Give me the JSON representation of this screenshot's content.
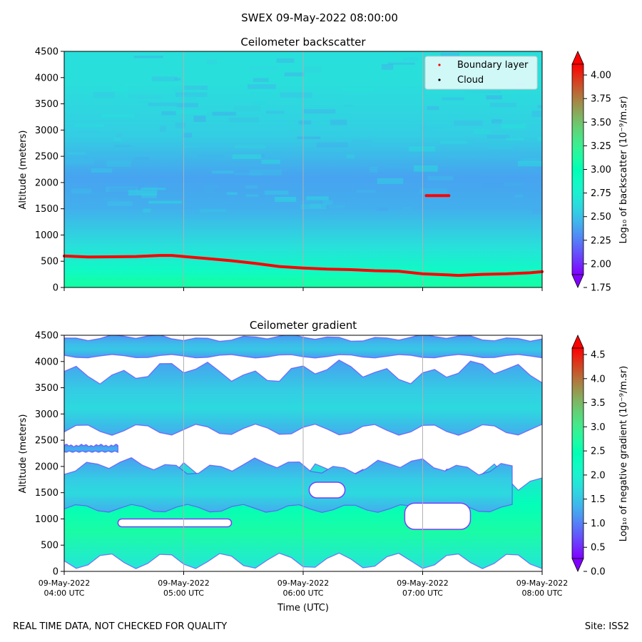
{
  "figure": {
    "suptitle": "SWEX 09-May-2022 08:00:00",
    "footer_left": "REAL TIME DATA, NOT CHECKED FOR QUALITY",
    "footer_right": "Site: ISS2"
  },
  "chart_data": [
    {
      "type": "heatmap",
      "title": "Ceilometer backscatter",
      "ylabel": "Altitude (meters)",
      "xlabel": "",
      "ylim": [
        0,
        4500
      ],
      "yticks": [
        0,
        500,
        1000,
        1500,
        2000,
        2500,
        3000,
        3500,
        4000,
        4500
      ],
      "xlim_hours": [
        4,
        8
      ],
      "xticks_hours": [
        4,
        5,
        6,
        7,
        8
      ],
      "grid": "vertical",
      "colorbar": {
        "label": "Log₁₀ of backscatter (10⁻⁹/m.sr)",
        "range": [
          1.75,
          4.25
        ],
        "ticks": [
          "1.75",
          "2.00",
          "2.25",
          "2.50",
          "2.75",
          "3.00",
          "3.25",
          "3.50",
          "3.75",
          "4.00"
        ],
        "tick_values": [
          1.75,
          2.0,
          2.25,
          2.5,
          2.75,
          3.0,
          3.25,
          3.5,
          3.75,
          4.0
        ],
        "extend": "both"
      },
      "legend": {
        "placement": "top-right",
        "entries": [
          {
            "label": "Boundary layer",
            "color": "#ff0000"
          },
          {
            "label": "Cloud",
            "color": "#000000"
          }
        ]
      },
      "boundary_layer": {
        "x_hours": [
          4.0,
          4.2,
          4.4,
          4.6,
          4.8,
          4.9,
          5.0,
          5.2,
          5.4,
          5.6,
          5.8,
          6.0,
          6.2,
          6.4,
          6.6,
          6.8,
          7.0,
          7.2,
          7.3,
          7.5,
          7.7,
          7.9,
          8.0
        ],
        "altitude_m": [
          600,
          580,
          585,
          590,
          610,
          610,
          590,
          550,
          510,
          460,
          400,
          370,
          350,
          340,
          320,
          310,
          260,
          240,
          230,
          250,
          260,
          280,
          300
        ]
      },
      "boundary_layer_segment": {
        "x_hours": [
          7.03,
          7.22
        ],
        "altitude_m": [
          1750,
          1750
        ]
      },
      "field_bands": [
        {
          "range_m": [
            0,
            220
          ],
          "value": 3.1
        },
        {
          "range_m": [
            220,
            400
          ],
          "value": 2.85
        },
        {
          "range_m": [
            400,
            1200
          ],
          "value": 2.6
        },
        {
          "range_m": [
            1200,
            1800
          ],
          "value": 2.35
        },
        {
          "range_m": [
            1800,
            2400
          ],
          "value": 2.3
        },
        {
          "range_m": [
            2400,
            3400
          ],
          "value": 2.5
        },
        {
          "range_m": [
            3400,
            4500
          ],
          "value": 2.6
        }
      ]
    },
    {
      "type": "heatmap",
      "title": "Ceilometer gradient",
      "ylabel": "Altitude (meters)",
      "xlabel": "Time (UTC)",
      "ylim": [
        0,
        4500
      ],
      "yticks": [
        0,
        500,
        1000,
        1500,
        2000,
        2500,
        3000,
        3500,
        4000,
        4500
      ],
      "xlim_hours": [
        4,
        8
      ],
      "xticks_hours": [
        4,
        5,
        6,
        7,
        8
      ],
      "xtick_labels": [
        "09-May-2022\n04:00 UTC",
        "09-May-2022\n05:00 UTC",
        "09-May-2022\n06:00 UTC",
        "09-May-2022\n07:00 UTC",
        "09-May-2022\n08:00 UTC"
      ],
      "grid": "vertical",
      "colorbar": {
        "label": "Log₁₀ of negative gradient (10⁻⁹/m.sr)",
        "range": [
          0.0,
          4.9
        ],
        "ticks": [
          "0.0",
          "0.5",
          "1.0",
          "1.5",
          "2.0",
          "2.5",
          "3.0",
          "3.5",
          "4.0",
          "4.5"
        ],
        "tick_values": [
          0.0,
          0.5,
          1.0,
          1.5,
          2.0,
          2.5,
          3.0,
          3.5,
          4.0,
          4.5
        ],
        "extend": "both"
      },
      "layers": [
        {
          "name": "lower layer",
          "x_hours": [
            4.0,
            8.0
          ],
          "altitude_m": [
            200,
            1750
          ],
          "peak_value": 2.7
        },
        {
          "name": "mid layer",
          "x_hours": [
            4.0,
            7.75
          ],
          "altitude_m": [
            1200,
            2000
          ],
          "peak_value": 1.6
        },
        {
          "name": "layer ~2400 m",
          "x_hours": [
            4.0,
            4.45
          ],
          "altitude_m": [
            2280,
            2400
          ],
          "peak_value": 1.2
        },
        {
          "name": "layer ~3200 m",
          "x_hours": [
            4.0,
            8.0
          ],
          "altitude_m": [
            2700,
            3800
          ],
          "peak_value": 1.6
        },
        {
          "name": "layer ~4300 m",
          "x_hours": [
            4.0,
            8.0
          ],
          "altitude_m": [
            4100,
            4450
          ],
          "peak_value": 1.4
        }
      ],
      "gaps": [
        {
          "x_hours": [
            4.45,
            5.4
          ],
          "altitude_m": [
            850,
            1000
          ]
        },
        {
          "x_hours": [
            6.05,
            6.35
          ],
          "altitude_m": [
            1400,
            1700
          ]
        },
        {
          "x_hours": [
            6.85,
            7.4
          ],
          "altitude_m": [
            800,
            1300
          ]
        }
      ]
    }
  ]
}
